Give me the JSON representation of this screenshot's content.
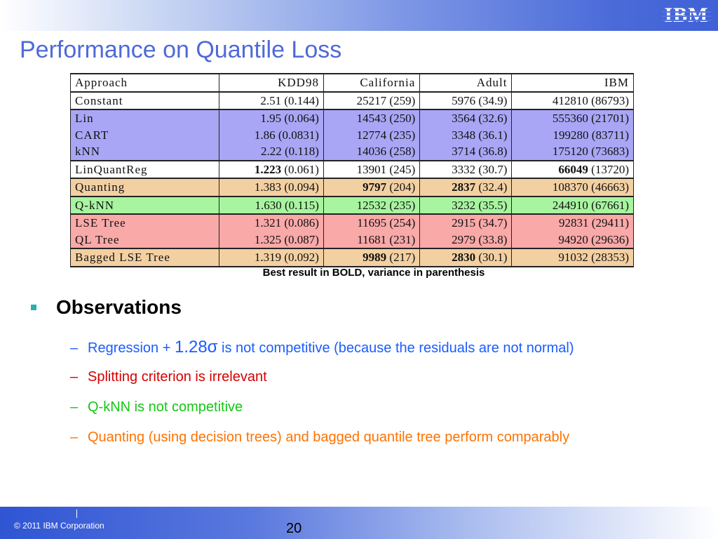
{
  "header": {
    "logo_text": "IBM"
  },
  "title": "Performance on Quantile Loss",
  "table": {
    "headers": [
      "Approach",
      "KDD98",
      "California",
      "Adult",
      "IBM"
    ],
    "rows": [
      {
        "style": "white",
        "name": "Constant",
        "cells": [
          {
            "v": "2.51",
            "p": " (0.144)",
            "b": false
          },
          {
            "v": "25217",
            "p": " (259)",
            "b": false
          },
          {
            "v": "5976",
            "p": " (34.9)",
            "b": false
          },
          {
            "v": "412810",
            "p": " (86793)",
            "b": false
          }
        ]
      },
      {
        "style": "blue",
        "name": "Lin",
        "cells": [
          {
            "v": "1.95",
            "p": " (0.064)",
            "b": false
          },
          {
            "v": "14543",
            "p": " (250)",
            "b": false
          },
          {
            "v": "3564",
            "p": " (32.6)",
            "b": false
          },
          {
            "v": "555360",
            "p": " (21701)",
            "b": false
          }
        ]
      },
      {
        "style": "blue",
        "name": "CART",
        "cells": [
          {
            "v": "1.86",
            "p": " (0.0831)",
            "b": false
          },
          {
            "v": "12774",
            "p": " (235)",
            "b": false
          },
          {
            "v": "3348",
            "p": " (36.1)",
            "b": false
          },
          {
            "v": "199280",
            "p": " (83711)",
            "b": false
          }
        ]
      },
      {
        "style": "blue",
        "name": "kNN",
        "cells": [
          {
            "v": "2.22",
            "p": " (0.118)",
            "b": false
          },
          {
            "v": "14036",
            "p": " (258)",
            "b": false
          },
          {
            "v": "3714",
            "p": " (36.8)",
            "b": false
          },
          {
            "v": "175120",
            "p": " (73683)",
            "b": false
          }
        ]
      },
      {
        "style": "white",
        "name": "LinQuantReg",
        "cells": [
          {
            "v": "1.223",
            "p": " (0.061)",
            "b": true
          },
          {
            "v": "13901",
            "p": " (245)",
            "b": false
          },
          {
            "v": "3332",
            "p": " (30.7)",
            "b": false
          },
          {
            "v": "66049",
            "p": " (13720)",
            "b": true
          }
        ]
      },
      {
        "style": "tan",
        "name": "Quanting",
        "cells": [
          {
            "v": "1.383",
            "p": " (0.094)",
            "b": false
          },
          {
            "v": "9797",
            "p": " (204)",
            "b": true
          },
          {
            "v": "2837",
            "p": " (32.4)",
            "b": true
          },
          {
            "v": "108370",
            "p": " (46663)",
            "b": false
          }
        ]
      },
      {
        "style": "green",
        "name": "Q-kNN",
        "cells": [
          {
            "v": "1.630",
            "p": " (0.115)",
            "b": false
          },
          {
            "v": "12532",
            "p": " (235)",
            "b": false
          },
          {
            "v": "3232",
            "p": " (35.5)",
            "b": false
          },
          {
            "v": "244910",
            "p": " (67661)",
            "b": false
          }
        ]
      },
      {
        "style": "pink",
        "name": "LSE Tree",
        "cells": [
          {
            "v": "1.321",
            "p": " (0.086)",
            "b": false
          },
          {
            "v": "11695",
            "p": " (254)",
            "b": false
          },
          {
            "v": "2915",
            "p": " (34.7)",
            "b": false
          },
          {
            "v": "92831",
            "p": " (29411)",
            "b": false
          }
        ]
      },
      {
        "style": "pink",
        "name": "QL Tree",
        "cells": [
          {
            "v": "1.325",
            "p": " (0.087)",
            "b": false
          },
          {
            "v": "11681",
            "p": " (231)",
            "b": false
          },
          {
            "v": "2979",
            "p": " (33.8)",
            "b": false
          },
          {
            "v": "94920",
            "p": " (29636)",
            "b": false
          }
        ]
      },
      {
        "style": "tan",
        "name": "Bagged LSE Tree",
        "cells": [
          {
            "v": "1.319",
            "p": " (0.092)",
            "b": false
          },
          {
            "v": "9989",
            "p": " (217)",
            "b": true
          },
          {
            "v": "2830",
            "p": " (30.1)",
            "b": true
          },
          {
            "v": "91032",
            "p": " (28353)",
            "b": false
          }
        ]
      }
    ]
  },
  "row_colors": {
    "white": "#ffffff",
    "blue": "#a9a6f5",
    "tan": "#f3d0a2",
    "green": "#a8f5a0",
    "pink": "#f8a9a8"
  },
  "caption": "Best result in BOLD, variance in parenthesis",
  "observations": {
    "heading": "Observations",
    "bullet_color": "#25b0b0",
    "items": [
      {
        "dash": "–",
        "pre": "Regression + ",
        "big": "1.28σ",
        "post": " is not competitive (because the residuals are not normal)",
        "color": "#1a5cff"
      },
      {
        "dash": "–",
        "pre": "Splitting criterion is irrelevant",
        "big": "",
        "post": "",
        "color": "#d40000"
      },
      {
        "dash": "–",
        "pre": "Q-kNN is not competitive",
        "big": "",
        "post": "",
        "color": "#15c715"
      },
      {
        "dash": "–",
        "pre": "Quanting (using decision trees) and bagged quantile tree perform comparably",
        "big": "",
        "post": "",
        "color": "#ff7300"
      }
    ]
  },
  "footer": {
    "copyright": "© 2011 IBM Corporation",
    "page_number": "20"
  }
}
